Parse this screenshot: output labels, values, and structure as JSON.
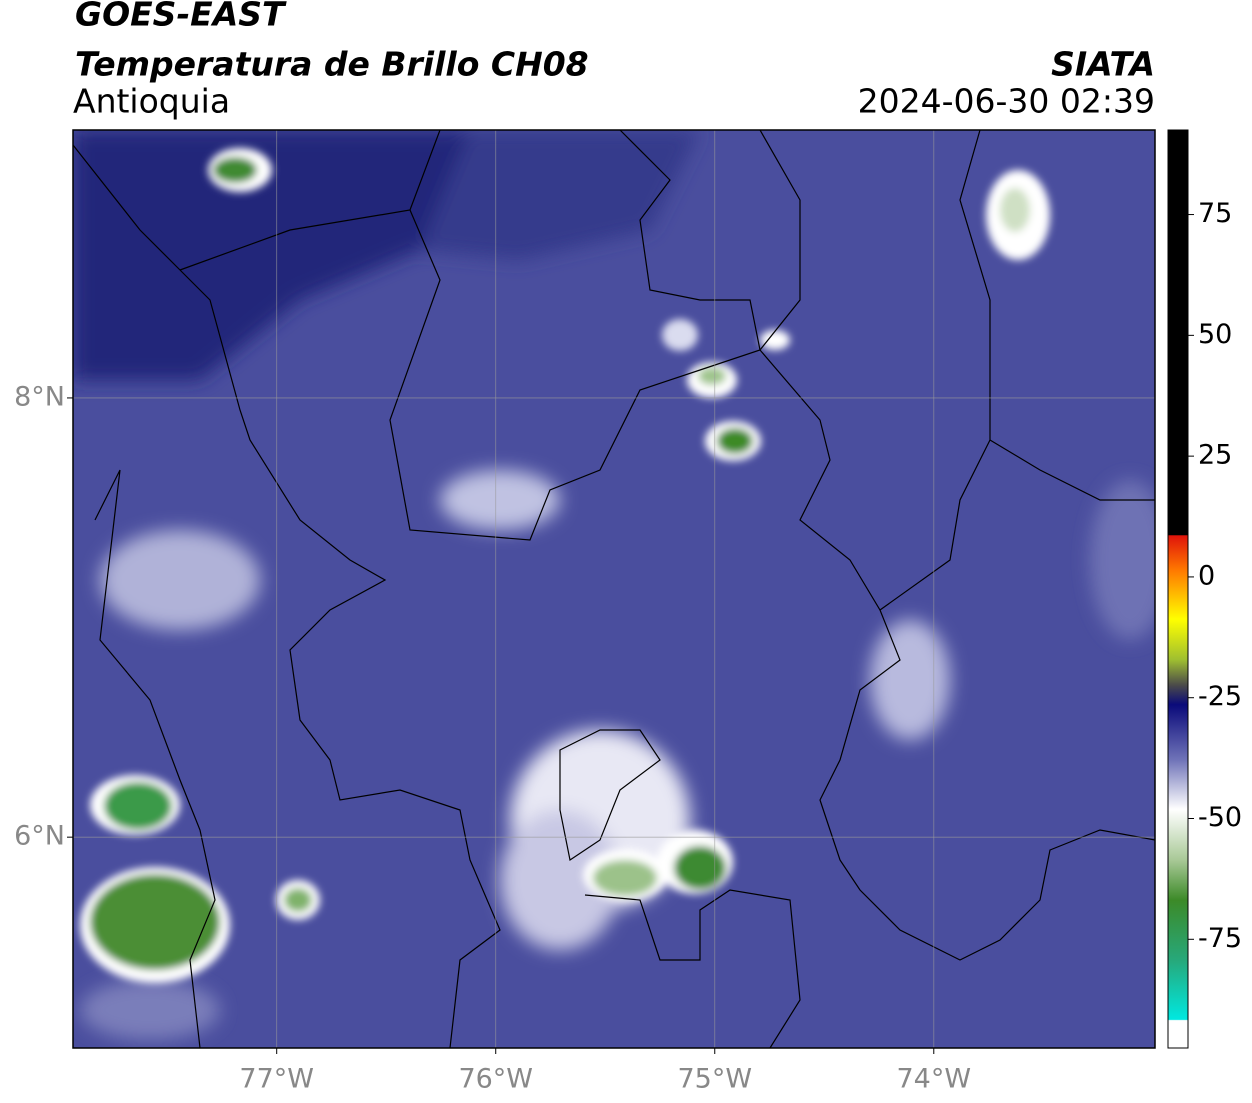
{
  "header": {
    "title": "GOES-EAST",
    "subtitle": "Temperatura de Brillo CH08",
    "region": "Antioquia",
    "source": "SIATA",
    "datetime": "2024-06-30 02:39"
  },
  "map": {
    "lonlim": [
      -77.93,
      -72.99
    ],
    "latlim": [
      5.04,
      9.22
    ],
    "lonticks": [
      {
        "value": -77,
        "label": "77°W"
      },
      {
        "value": -76,
        "label": "76°W"
      },
      {
        "value": -75,
        "label": "75°W"
      },
      {
        "value": -74,
        "label": "74°W"
      }
    ],
    "latticks": [
      {
        "value": 8,
        "label": "8°N"
      },
      {
        "value": 6,
        "label": "6°N"
      }
    ],
    "grid": true
  },
  "colorbar": {
    "lim": [
      -97.5,
      92.5
    ],
    "ticks": [
      75,
      50,
      25,
      0,
      -25,
      -50,
      -75
    ]
  }
}
